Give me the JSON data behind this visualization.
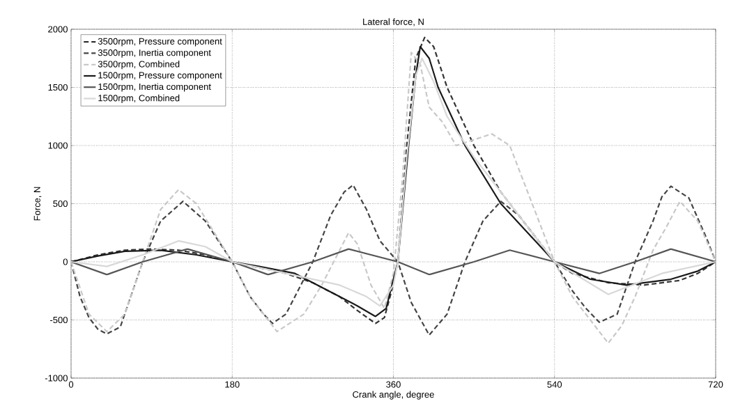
{
  "chart_data": {
    "type": "line",
    "title": "Lateral force, N",
    "xlabel": "Crank angle, degree",
    "ylabel": "Force, N",
    "xlim": [
      0,
      720
    ],
    "xticks": [
      0,
      180,
      360,
      540,
      720
    ],
    "ylim": [
      -1000,
      2000
    ],
    "yticks": [
      -1000,
      -500,
      0,
      500,
      1000,
      1500,
      2000
    ],
    "grid": true,
    "legend": "top left",
    "series": [
      {
        "name": "3500rpm, Pressure component",
        "color": "#333333",
        "line_style": "dashed",
        "x": [
          0,
          30,
          60,
          90,
          120,
          150,
          180,
          210,
          240,
          270,
          300,
          320,
          340,
          350,
          358,
          365,
          375,
          385,
          395,
          405,
          420,
          450,
          480,
          510,
          540,
          560,
          600,
          640,
          680,
          700,
          720
        ],
        "values": [
          0,
          60,
          100,
          110,
          100,
          60,
          0,
          -50,
          -100,
          -180,
          -300,
          -420,
          -530,
          -480,
          -250,
          0,
          1000,
          1750,
          1930,
          1850,
          1500,
          1000,
          600,
          300,
          0,
          -100,
          -180,
          -200,
          -160,
          -100,
          0
        ]
      },
      {
        "name": "3500rpm, Inertia component",
        "color": "#444444",
        "line_style": "dashed",
        "x": [
          0,
          10,
          20,
          30,
          40,
          55,
          80,
          100,
          125,
          150,
          180,
          200,
          215,
          225,
          240,
          270,
          290,
          305,
          315,
          330,
          345,
          365,
          380,
          400,
          420,
          440,
          460,
          480,
          500,
          520,
          540,
          560,
          575,
          590,
          610,
          630,
          650,
          660,
          670,
          690,
          710,
          720
        ],
        "values": [
          0,
          -300,
          -480,
          -580,
          -620,
          -560,
          0,
          350,
          520,
          350,
          0,
          -300,
          -450,
          -530,
          -450,
          0,
          400,
          600,
          660,
          450,
          180,
          0,
          -350,
          -630,
          -450,
          0,
          350,
          520,
          400,
          200,
          0,
          -250,
          -400,
          -520,
          -450,
          0,
          350,
          560,
          650,
          550,
          200,
          0
        ]
      },
      {
        "name": "3500rpm, Combined",
        "color": "#c8c8c8",
        "line_style": "dashed",
        "x": [
          0,
          20,
          40,
          60,
          80,
          100,
          120,
          140,
          160,
          180,
          200,
          230,
          260,
          280,
          300,
          310,
          320,
          335,
          350,
          360,
          370,
          380,
          390,
          400,
          415,
          430,
          450,
          470,
          490,
          510,
          525,
          540,
          560,
          580,
          600,
          615,
          630,
          650,
          665,
          680,
          700,
          720
        ],
        "values": [
          0,
          -450,
          -600,
          -450,
          0,
          450,
          620,
          500,
          250,
          0,
          -300,
          -600,
          -450,
          -200,
          100,
          250,
          150,
          -200,
          -400,
          -100,
          700,
          1800,
          1700,
          1330,
          1200,
          1000,
          1050,
          1100,
          1000,
          600,
          300,
          0,
          -300,
          -500,
          -700,
          -550,
          -300,
          100,
          300,
          520,
          350,
          0
        ]
      },
      {
        "name": "1500rpm, Pressure component",
        "color": "#1a1a1a",
        "line_style": "solid",
        "x": [
          0,
          30,
          60,
          100,
          140,
          180,
          210,
          250,
          300,
          320,
          340,
          352,
          360,
          365,
          377,
          385,
          390,
          400,
          410,
          440,
          480,
          510,
          540,
          580,
          620,
          670,
          700,
          720
        ],
        "values": [
          0,
          50,
          90,
          100,
          60,
          0,
          -40,
          -100,
          -300,
          -380,
          -470,
          -400,
          -150,
          0,
          1000,
          1600,
          1850,
          1750,
          1500,
          1000,
          500,
          250,
          0,
          -150,
          -200,
          -150,
          -80,
          0
        ]
      },
      {
        "name": "1500rpm, Inertia component",
        "color": "#555555",
        "line_style": "solid",
        "x": [
          0,
          40,
          80,
          130,
          180,
          220,
          270,
          310,
          365,
          400,
          450,
          490,
          540,
          590,
          630,
          670,
          720
        ],
        "values": [
          0,
          -110,
          0,
          110,
          0,
          -110,
          0,
          110,
          0,
          -110,
          0,
          100,
          0,
          -100,
          0,
          110,
          0
        ]
      },
      {
        "name": "1500rpm, Combined",
        "color": "#d8d8d8",
        "line_style": "solid",
        "x": [
          0,
          40,
          80,
          120,
          150,
          180,
          240,
          300,
          330,
          345,
          360,
          365,
          375,
          385,
          392,
          405,
          420,
          450,
          490,
          540,
          600,
          660,
          720
        ],
        "values": [
          0,
          -40,
          60,
          180,
          130,
          0,
          -100,
          -200,
          -300,
          -380,
          -200,
          0,
          900,
          1600,
          1750,
          1550,
          1250,
          900,
          500,
          0,
          -280,
          -100,
          0
        ]
      }
    ]
  }
}
